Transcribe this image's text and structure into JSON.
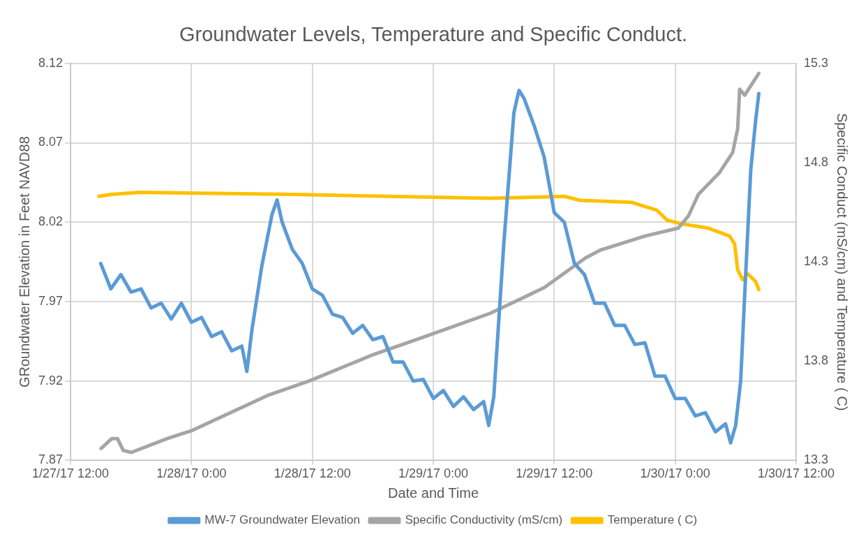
{
  "chart_data": {
    "type": "line",
    "title": "Groundwater Levels, Temperature and Specific Conduct.",
    "xlabel": "Date and Time",
    "ylabel": "GRoundwater Elevation in Feet NAVD88",
    "y2label": "Specific Conduct (mS/cm) and Temperature ( C)",
    "xlim": [
      "--01-27T12:00",
      "--01-30T12:00"
    ],
    "xticks": [
      {
        "value": "--01-27T12:00",
        "label": "1/27/17 12:00"
      },
      {
        "value": "--01-28T00:00",
        "label": "1/28/17 0:00"
      },
      {
        "value": "--01-28T12:00",
        "label": "1/28/17 12:00"
      },
      {
        "value": "--01-29T00:00",
        "label": "1/29/17 0:00"
      },
      {
        "value": "--01-29T12:00",
        "label": "1/29/17 12:00"
      },
      {
        "value": "--01-30T00:00",
        "label": "1/30/17 0:00"
      },
      {
        "value": "--01-30T12:00",
        "label": "1/30/17 12:00"
      }
    ],
    "ylim": [
      7.87,
      8.12
    ],
    "yticks": [
      7.87,
      7.92,
      7.97,
      8.02,
      8.07,
      8.12
    ],
    "y2lim": [
      13.3,
      15.3
    ],
    "y2ticks": [
      13.3,
      13.8,
      14.3,
      14.8,
      15.3
    ],
    "grid": true,
    "legend": "bottom",
    "marker": "none",
    "line_style": "solid",
    "series": [
      {
        "name": "MW-7 Groundwater Elevation",
        "color": "#5b9bd5",
        "x": [
          "--01-27T15:00",
          "--01-27T16:00",
          "--01-27T17:00",
          "--01-27T18:00",
          "--01-27T19:00",
          "--01-27T20:00",
          "--01-27T21:00",
          "--01-27T22:00",
          "--01-27T23:00",
          "--01-28T00:00",
          "--01-28T01:00",
          "--01-28T02:00",
          "--01-28T03:00",
          "--01-28T04:00",
          "--01-28T05:00",
          "--01-28T05:30",
          "--01-28T06:00",
          "--01-28T07:00",
          "--01-28T08:00",
          "--01-28T08:30",
          "--01-28T09:00",
          "--01-28T10:00",
          "--01-28T11:00",
          "--01-28T12:00",
          "--01-28T13:00",
          "--01-28T14:00",
          "--01-28T15:00",
          "--01-28T16:00",
          "--01-28T17:00",
          "--01-28T18:00",
          "--01-28T19:00",
          "--01-28T20:00",
          "--01-28T21:00",
          "--01-28T22:00",
          "--01-28T23:00",
          "--01-29T00:00",
          "--01-29T01:00",
          "--01-29T02:00",
          "--01-29T03:00",
          "--01-29T04:00",
          "--01-29T05:00",
          "--01-29T05:30",
          "--01-29T06:00",
          "--01-29T07:00",
          "--01-29T08:00",
          "--01-29T08:30",
          "--01-29T09:00",
          "--01-29T10:00",
          "--01-29T11:00",
          "--01-29T12:00",
          "--01-29T13:00",
          "--01-29T14:00",
          "--01-29T15:00",
          "--01-29T16:00",
          "--01-29T17:00",
          "--01-29T18:00",
          "--01-29T19:00",
          "--01-29T20:00",
          "--01-29T21:00",
          "--01-29T22:00",
          "--01-29T23:00",
          "--01-30T00:00",
          "--01-30T01:00",
          "--01-30T02:00",
          "--01-30T03:00",
          "--01-30T04:00",
          "--01-30T05:00",
          "--01-30T05:30",
          "--01-30T06:00",
          "--01-30T06:30",
          "--01-30T07:00",
          "--01-30T07:30",
          "--01-30T08:00",
          "--01-30T08:18"
        ],
        "values": [
          7.994,
          7.978,
          7.987,
          7.976,
          7.978,
          7.966,
          7.969,
          7.959,
          7.969,
          7.957,
          7.96,
          7.948,
          7.951,
          7.939,
          7.942,
          7.926,
          7.952,
          7.993,
          8.025,
          8.034,
          8.02,
          8.003,
          7.994,
          7.978,
          7.974,
          7.962,
          7.96,
          7.95,
          7.955,
          7.946,
          7.948,
          7.932,
          7.932,
          7.92,
          7.921,
          7.909,
          7.914,
          7.904,
          7.91,
          7.902,
          7.907,
          7.892,
          7.91,
          8.007,
          8.089,
          8.103,
          8.098,
          8.081,
          8.061,
          8.026,
          8.02,
          7.994,
          7.987,
          7.969,
          7.969,
          7.955,
          7.955,
          7.943,
          7.944,
          7.923,
          7.923,
          7.909,
          7.909,
          7.898,
          7.9,
          7.888,
          7.893,
          7.881,
          7.892,
          7.92,
          7.988,
          8.053,
          8.085,
          8.101
        ]
      },
      {
        "name": "Specific Conductivity (mS/cm)",
        "color": "#a5a5a5",
        "axis": "y2",
        "x": [
          "--01-27T15:02",
          "--01-27T16:06",
          "--01-27T16:40",
          "--01-27T17:14",
          "--01-27T18:02",
          "--01-27T21:36",
          "--01-28T00:02",
          "--01-28T07:42",
          "--01-28T11:42",
          "--01-28T17:54",
          "--01-28T22:58",
          "--01-29T05:36",
          "--01-29T07:42",
          "--01-29T11:00",
          "--01-29T15:06",
          "--01-29T16:36",
          "--01-29T21:00",
          "--01-30T00:18",
          "--01-30T01:18",
          "--01-30T02:18",
          "--01-30T04:24",
          "--01-30T05:42",
          "--01-30T06:12",
          "--01-30T06:24",
          "--01-30T06:54",
          "--01-30T08:18"
        ],
        "values": [
          13.36,
          13.41,
          13.41,
          13.35,
          13.34,
          13.41,
          13.45,
          13.63,
          13.7,
          13.83,
          13.92,
          14.04,
          14.09,
          14.17,
          14.32,
          14.36,
          14.43,
          14.47,
          14.53,
          14.64,
          14.75,
          14.85,
          14.97,
          15.17,
          15.14,
          15.25
        ]
      },
      {
        "name": "Temperature ( C)",
        "color": "#ffc000",
        "axis": "y2",
        "x": [
          "--01-27T14:49",
          "--01-27T15:58",
          "--01-27T18:54",
          "--01-28T10:18",
          "--01-29T05:36",
          "--01-29T13:00",
          "--01-29T14:36",
          "--01-29T19:42",
          "--01-29T22:12",
          "--01-29T23:12",
          "--01-30T00:48",
          "--01-30T03:18",
          "--01-30T05:24",
          "--01-30T05:54",
          "--01-30T06:12",
          "--01-30T06:42",
          "--01-30T07:12",
          "--01-30T08:00",
          "--01-30T08:18"
        ],
        "values": [
          14.63,
          14.64,
          14.65,
          14.64,
          14.62,
          14.63,
          14.61,
          14.6,
          14.56,
          14.51,
          14.49,
          14.47,
          14.43,
          14.39,
          14.26,
          14.21,
          14.24,
          14.2,
          14.16
        ]
      }
    ]
  }
}
